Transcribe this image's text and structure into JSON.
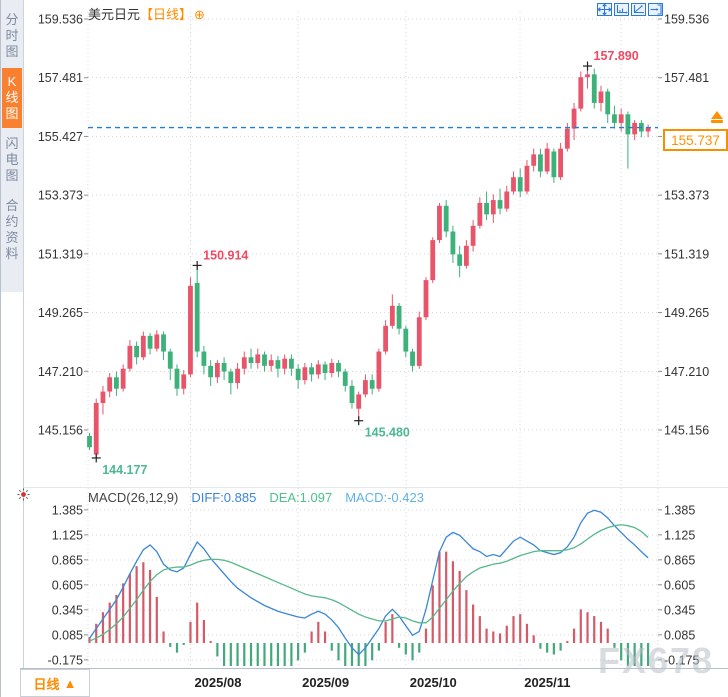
{
  "watermark": "FX678",
  "header": {
    "symbol": "美元日元",
    "period_tag": "【日线】",
    "add_icon": "⊕"
  },
  "sidebar": {
    "items": [
      {
        "key": "timeline",
        "label": "分时图",
        "active": false
      },
      {
        "key": "kline",
        "label": "K线图",
        "active": true
      },
      {
        "key": "flash",
        "label": "闪电图",
        "active": false
      },
      {
        "key": "contract",
        "label": "合约资料",
        "active": false
      }
    ]
  },
  "toolbar": {
    "icons": [
      "pan",
      "scale-x",
      "scale-y",
      "exit"
    ]
  },
  "macd_header": {
    "name": "MACD(26,12,9)",
    "diff": "DIFF:0.885",
    "dea": "DEA:1.097",
    "macd": "MACD:-0.423"
  },
  "price_tag": {
    "value": "155.737"
  },
  "current_price": {
    "value": "155.737",
    "level": 155.737
  },
  "bottom": {
    "period": "日线",
    "arrow": "▲"
  },
  "x_axis": {
    "month_starts": [
      {
        "label": "2025/08",
        "index": 15
      },
      {
        "label": "2025/09",
        "index": 31
      },
      {
        "label": "2025/10",
        "index": 47
      },
      {
        "label": "2025/11",
        "index": 64
      },
      {
        "label": "",
        "index": 79
      }
    ]
  },
  "annotations": [
    {
      "text": "157.890",
      "price": 157.89,
      "index": 74,
      "dir": "up",
      "pos": "above"
    },
    {
      "text": "150.914",
      "price": 150.914,
      "index": 16,
      "dir": "up",
      "pos": "above"
    },
    {
      "text": "145.480",
      "price": 145.48,
      "index": 40,
      "dir": "down",
      "pos": "below"
    },
    {
      "text": "144.177",
      "price": 144.177,
      "index": 1,
      "dir": "down",
      "pos": "below"
    }
  ],
  "colors": {
    "up": "#e8556a",
    "down": "#3cb179",
    "ann_up": "#ef4a62",
    "ann_down": "#4db795",
    "diff": "#3a86d8",
    "dea": "#57b98a",
    "hist_up": "#d45a68",
    "hist_down": "#44a87d",
    "dashed": "#1e80d8",
    "orange": "#ff8c00",
    "grid": "#d4d7dd",
    "axis_text": "#333333"
  },
  "chart_data": {
    "type": "candlestick+macd",
    "symbol": "美元日元",
    "period": "日线",
    "title": "美元日元【日线】",
    "y_axis_main": [
      {
        "t": "159.536",
        "v": 159.536
      },
      {
        "t": "157.481",
        "v": 157.481
      },
      {
        "t": "155.427",
        "v": 155.427
      },
      {
        "t": "153.373",
        "v": 153.373
      },
      {
        "t": "151.319",
        "v": 151.319
      },
      {
        "t": "149.265",
        "v": 149.265
      },
      {
        "t": "147.210",
        "v": 147.21
      },
      {
        "t": "145.156",
        "v": 145.156
      }
    ],
    "y_axis_main_right": [
      {
        "t": "159.536",
        "v": 159.536
      },
      {
        "t": "157.481",
        "v": 157.481
      },
      {
        "t": "153.373",
        "v": 153.373
      },
      {
        "t": "151.319",
        "v": 151.319
      },
      {
        "t": "149.265",
        "v": 149.265
      },
      {
        "t": "147.210",
        "v": 147.21
      },
      {
        "t": "145.156",
        "v": 145.156
      }
    ],
    "y_axis_macd": [
      {
        "t": "1.385",
        "v": 1.385
      },
      {
        "t": "1.125",
        "v": 1.125
      },
      {
        "t": "0.865",
        "v": 0.865
      },
      {
        "t": "0.605",
        "v": 0.605
      },
      {
        "t": "0.345",
        "v": 0.345
      },
      {
        "t": "0.085",
        "v": 0.085
      },
      {
        "t": "-0.175",
        "v": -0.175
      }
    ],
    "candles": [
      [
        144.95,
        145.05,
        144.45,
        144.55
      ],
      [
        144.3,
        146.25,
        144.177,
        146.1
      ],
      [
        146.1,
        146.7,
        145.7,
        146.5
      ],
      [
        146.5,
        147.15,
        146.3,
        147.0
      ],
      [
        147.0,
        147.2,
        146.35,
        146.6
      ],
      [
        146.6,
        147.45,
        146.5,
        147.3
      ],
      [
        147.3,
        148.3,
        147.2,
        148.1
      ],
      [
        148.1,
        148.25,
        147.45,
        147.7
      ],
      [
        147.7,
        148.6,
        147.6,
        148.45
      ],
      [
        148.45,
        148.55,
        147.8,
        148.0
      ],
      [
        148.0,
        148.65,
        147.9,
        148.5
      ],
      [
        148.5,
        148.6,
        147.6,
        147.9
      ],
      [
        147.9,
        148.0,
        146.9,
        147.3
      ],
      [
        147.3,
        147.45,
        146.35,
        146.6
      ],
      [
        146.6,
        147.25,
        146.4,
        147.1
      ],
      [
        147.1,
        150.5,
        147.0,
        150.2
      ],
      [
        150.3,
        150.914,
        147.7,
        147.9
      ],
      [
        147.9,
        148.1,
        147.1,
        147.4
      ],
      [
        147.4,
        147.6,
        146.7,
        147.0
      ],
      [
        147.0,
        147.6,
        146.8,
        147.5
      ],
      [
        147.5,
        147.7,
        146.9,
        147.2
      ],
      [
        147.2,
        147.3,
        146.4,
        146.8
      ],
      [
        146.8,
        147.5,
        146.6,
        147.3
      ],
      [
        147.3,
        147.9,
        147.1,
        147.7
      ],
      [
        147.7,
        148.0,
        147.3,
        147.5
      ],
      [
        147.5,
        148.0,
        147.3,
        147.8
      ],
      [
        147.8,
        147.9,
        147.2,
        147.4
      ],
      [
        147.4,
        147.8,
        147.2,
        147.6
      ],
      [
        147.6,
        147.75,
        147.0,
        147.3
      ],
      [
        147.3,
        147.8,
        147.1,
        147.65
      ],
      [
        147.65,
        147.8,
        147.05,
        147.3
      ],
      [
        147.3,
        147.45,
        146.6,
        146.9
      ],
      [
        146.9,
        147.5,
        146.75,
        147.35
      ],
      [
        147.35,
        147.5,
        146.85,
        147.1
      ],
      [
        147.1,
        147.6,
        146.95,
        147.45
      ],
      [
        147.45,
        147.55,
        146.9,
        147.15
      ],
      [
        147.15,
        147.65,
        147.0,
        147.5
      ],
      [
        147.5,
        147.6,
        147.0,
        147.2
      ],
      [
        147.2,
        147.3,
        146.5,
        146.7
      ],
      [
        146.7,
        146.9,
        145.9,
        146.1
      ],
      [
        145.9,
        146.5,
        145.48,
        146.4
      ],
      [
        146.4,
        147.1,
        146.3,
        146.9
      ],
      [
        146.9,
        147.1,
        146.4,
        146.6
      ],
      [
        146.6,
        148.0,
        146.5,
        147.9
      ],
      [
        147.9,
        149.0,
        147.8,
        148.8
      ],
      [
        148.8,
        149.9,
        148.7,
        149.5
      ],
      [
        149.5,
        149.6,
        148.5,
        148.7
      ],
      [
        148.7,
        148.8,
        147.7,
        147.9
      ],
      [
        147.9,
        148.0,
        147.2,
        147.4
      ],
      [
        147.4,
        149.3,
        147.3,
        149.1
      ],
      [
        149.1,
        150.5,
        149.0,
        150.4
      ],
      [
        150.4,
        151.9,
        150.3,
        151.8
      ],
      [
        151.8,
        153.1,
        151.7,
        153.0
      ],
      [
        153.0,
        153.2,
        151.9,
        152.1
      ],
      [
        152.1,
        152.3,
        151.0,
        151.3
      ],
      [
        151.3,
        151.6,
        150.5,
        150.9
      ],
      [
        150.9,
        151.8,
        150.8,
        151.6
      ],
      [
        151.6,
        152.5,
        151.4,
        152.3
      ],
      [
        152.3,
        153.3,
        152.2,
        153.1
      ],
      [
        153.1,
        153.5,
        152.5,
        152.7
      ],
      [
        152.7,
        153.4,
        152.4,
        153.2
      ],
      [
        153.2,
        153.6,
        152.7,
        152.9
      ],
      [
        152.9,
        153.7,
        152.8,
        153.5
      ],
      [
        153.5,
        154.2,
        153.4,
        154.0
      ],
      [
        154.0,
        154.3,
        153.3,
        153.5
      ],
      [
        153.5,
        154.6,
        153.4,
        154.4
      ],
      [
        154.4,
        155.0,
        154.2,
        154.8
      ],
      [
        154.8,
        155.0,
        154.0,
        154.2
      ],
      [
        154.2,
        155.2,
        154.1,
        155.0
      ],
      [
        154.9,
        155.0,
        153.8,
        154.0
      ],
      [
        154.0,
        155.2,
        153.9,
        155.0
      ],
      [
        155.0,
        155.9,
        154.9,
        155.7
      ],
      [
        155.7,
        156.6,
        155.3,
        156.4
      ],
      [
        156.4,
        157.7,
        156.3,
        157.5
      ],
      [
        157.5,
        157.89,
        157.1,
        157.6
      ],
      [
        157.6,
        157.8,
        156.4,
        156.6
      ],
      [
        156.6,
        157.2,
        156.3,
        157.0
      ],
      [
        157.0,
        157.1,
        155.9,
        156.2
      ],
      [
        156.2,
        156.5,
        155.7,
        155.9
      ],
      [
        155.9,
        156.4,
        155.6,
        156.2
      ],
      [
        156.2,
        156.3,
        154.3,
        155.5
      ],
      [
        155.5,
        156.0,
        155.3,
        155.9
      ],
      [
        155.9,
        156.0,
        155.4,
        155.6
      ],
      [
        155.6,
        155.85,
        155.4,
        155.737
      ]
    ],
    "macd": {
      "params": "MACD(26,12,9)",
      "diff": [
        0.05,
        0.15,
        0.25,
        0.35,
        0.45,
        0.58,
        0.72,
        0.85,
        0.97,
        1.02,
        0.95,
        0.82,
        0.76,
        0.74,
        0.78,
        0.92,
        1.05,
        0.98,
        0.88,
        0.8,
        0.72,
        0.64,
        0.57,
        0.52,
        0.47,
        0.43,
        0.39,
        0.36,
        0.33,
        0.31,
        0.29,
        0.27,
        0.26,
        0.3,
        0.33,
        0.3,
        0.24,
        0.16,
        0.05,
        -0.05,
        -0.12,
        -0.05,
        0.05,
        0.15,
        0.28,
        0.35,
        0.28,
        0.18,
        0.08,
        0.12,
        0.35,
        0.65,
        0.95,
        1.1,
        1.15,
        1.12,
        1.05,
        0.98,
        0.95,
        0.9,
        0.92,
        0.9,
        0.98,
        1.06,
        1.1,
        1.06,
        1.02,
        0.96,
        0.94,
        0.92,
        0.94,
        1.0,
        1.1,
        1.25,
        1.35,
        1.38,
        1.36,
        1.3,
        1.22,
        1.15,
        1.08,
        1.02,
        0.95,
        0.885
      ],
      "dea": [
        0.02,
        0.05,
        0.09,
        0.14,
        0.2,
        0.27,
        0.36,
        0.45,
        0.55,
        0.64,
        0.71,
        0.76,
        0.78,
        0.79,
        0.79,
        0.81,
        0.84,
        0.86,
        0.87,
        0.87,
        0.86,
        0.84,
        0.81,
        0.78,
        0.75,
        0.72,
        0.69,
        0.66,
        0.63,
        0.6,
        0.57,
        0.54,
        0.51,
        0.49,
        0.48,
        0.47,
        0.45,
        0.42,
        0.38,
        0.34,
        0.3,
        0.27,
        0.25,
        0.23,
        0.23,
        0.25,
        0.27,
        0.26,
        0.23,
        0.21,
        0.21,
        0.27,
        0.36,
        0.45,
        0.54,
        0.62,
        0.69,
        0.74,
        0.78,
        0.8,
        0.82,
        0.83,
        0.85,
        0.88,
        0.91,
        0.93,
        0.95,
        0.96,
        0.96,
        0.96,
        0.96,
        0.97,
        0.99,
        1.03,
        1.08,
        1.13,
        1.17,
        1.2,
        1.22,
        1.23,
        1.22,
        1.2,
        1.16,
        1.097
      ],
      "hist": [
        0.06,
        0.2,
        0.32,
        0.42,
        0.5,
        0.62,
        0.72,
        0.8,
        0.84,
        0.76,
        0.48,
        0.12,
        -0.04,
        -0.1,
        -0.02,
        0.22,
        0.42,
        0.24,
        0.02,
        -0.14,
        -0.28,
        -0.38,
        -0.4,
        -0.36,
        -0.38,
        -0.4,
        -0.42,
        -0.4,
        -0.38,
        -0.32,
        -0.26,
        -0.18,
        -0.1,
        0.12,
        0.22,
        0.12,
        -0.08,
        -0.18,
        -0.32,
        -0.38,
        -0.45,
        -0.3,
        -0.18,
        -0.08,
        0.22,
        0.3,
        -0.05,
        -0.12,
        -0.18,
        -0.1,
        0.15,
        0.6,
        0.95,
        0.95,
        0.85,
        0.75,
        0.55,
        0.4,
        0.28,
        0.15,
        0.12,
        0.1,
        0.18,
        0.28,
        0.3,
        0.2,
        0.08,
        -0.06,
        -0.1,
        -0.12,
        -0.08,
        0.02,
        0.15,
        0.35,
        0.32,
        0.28,
        0.22,
        0.15,
        -0.05,
        -0.18,
        -0.28,
        -0.34,
        -0.4,
        -0.423
      ]
    }
  }
}
